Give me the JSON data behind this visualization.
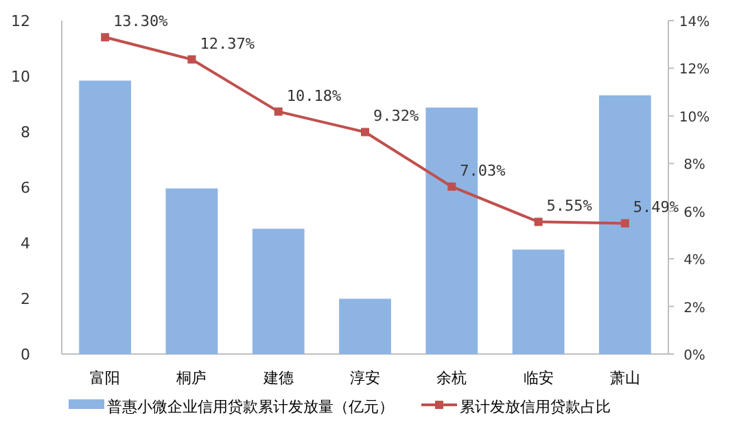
{
  "chart_data": {
    "type": "bar",
    "categories": [
      "富阳",
      "桐庐",
      "建德",
      "淳安",
      "余杭",
      "临安",
      "萧山"
    ],
    "series": [
      {
        "name": "普惠小微企业信用贷款累计发放量（亿元）",
        "color": "#8eb4e3",
        "values": [
          9.84,
          5.96,
          4.51,
          1.99,
          8.87,
          3.76,
          9.31
        ]
      },
      {
        "name": "累计发放信用贷款占比",
        "type": "line",
        "axis": "y2",
        "color": "#c0504d",
        "marker": "square",
        "values": [
          13.3,
          12.37,
          10.18,
          9.32,
          7.03,
          5.55,
          5.49
        ],
        "value_labels": [
          "13.30%",
          "12.37%",
          "10.18%",
          "9.32%",
          "7.03%",
          "5.55%",
          "5.49%"
        ]
      }
    ],
    "ylim": [
      0,
      12
    ],
    "yticks": [
      0,
      2,
      4,
      6,
      8,
      10,
      12
    ],
    "y2lim": [
      0,
      14
    ],
    "y2ticks": [
      {
        "value": 0,
        "label": "0%"
      },
      {
        "value": 2,
        "label": "2%"
      },
      {
        "value": 4,
        "label": "4%"
      },
      {
        "value": 6,
        "label": "6%"
      },
      {
        "value": 8,
        "label": "8%"
      },
      {
        "value": 10,
        "label": "10%"
      },
      {
        "value": 12,
        "label": "12%"
      },
      {
        "value": 14,
        "label": "14%"
      }
    ],
    "grid": false,
    "legend": "bottom"
  }
}
